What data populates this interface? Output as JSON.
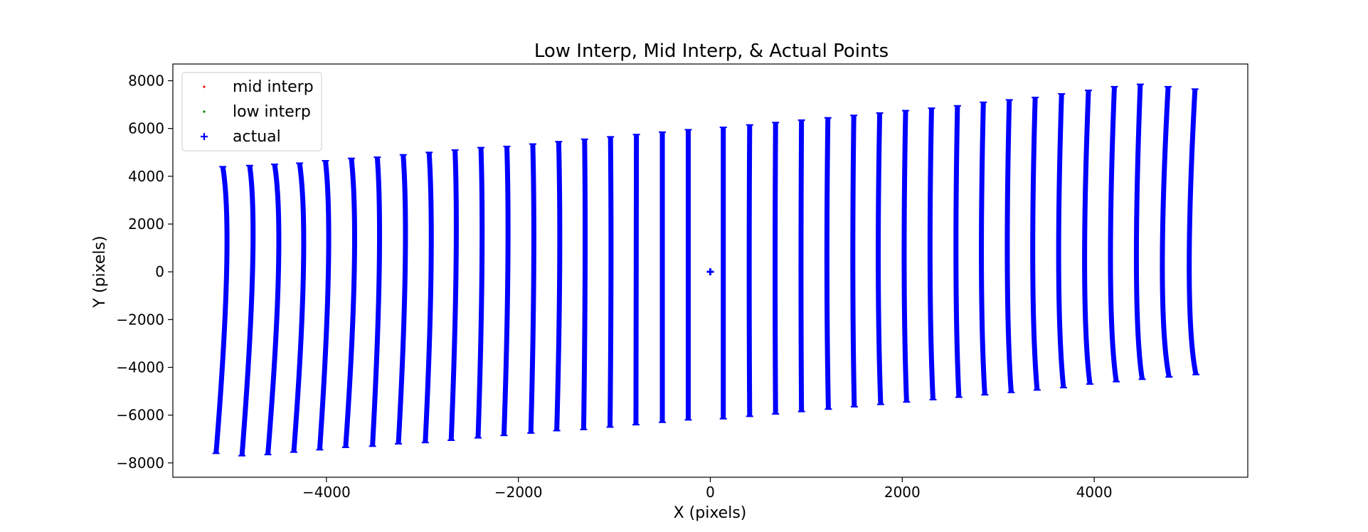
{
  "chart_data": {
    "type": "scatter",
    "title": "Low Interp, Mid Interp, & Actual Points",
    "xlabel": "X (pixels)",
    "ylabel": "Y (pixels)",
    "xlim": [
      -5600,
      5600
    ],
    "ylim": [
      -8600,
      8700
    ],
    "xticks": [
      -4000,
      -2000,
      0,
      2000,
      4000
    ],
    "xtick_labels": [
      "−4000",
      "−2000",
      "0",
      "2000",
      "4000"
    ],
    "yticks": [
      -8000,
      -6000,
      -4000,
      -2000,
      0,
      2000,
      4000,
      6000,
      8000
    ],
    "ytick_labels": [
      "−8000",
      "−6000",
      "−4000",
      "−2000",
      "0",
      "2000",
      "4000",
      "6000",
      "8000"
    ],
    "grid": false,
    "legend_position": "upper-left",
    "series": [
      {
        "name": "mid interp",
        "marker": "dot",
        "color": "#ff0000",
        "points": []
      },
      {
        "name": "low interp",
        "marker": "dot",
        "color": "#008000",
        "points": []
      },
      {
        "name": "actual",
        "marker": "plus",
        "color": "#0000ff",
        "center_point": [
          0,
          0
        ],
        "columns": [
          {
            "x_top": -5080,
            "y_top": 4400,
            "x_mid": -5040,
            "x_bottom": -5150,
            "y_bottom": -7600
          },
          {
            "x_top": -4800,
            "y_top": 4450,
            "x_mid": -4770,
            "x_bottom": -4880,
            "y_bottom": -7700
          },
          {
            "x_top": -4540,
            "y_top": 4500,
            "x_mid": -4500,
            "x_bottom": -4610,
            "y_bottom": -7650
          },
          {
            "x_top": -4280,
            "y_top": 4550,
            "x_mid": -4240,
            "x_bottom": -4340,
            "y_bottom": -7550
          },
          {
            "x_top": -4010,
            "y_top": 4650,
            "x_mid": -3980,
            "x_bottom": -4070,
            "y_bottom": -7450
          },
          {
            "x_top": -3740,
            "y_top": 4750,
            "x_mid": -3710,
            "x_bottom": -3800,
            "y_bottom": -7350
          },
          {
            "x_top": -3470,
            "y_top": 4800,
            "x_mid": -3450,
            "x_bottom": -3520,
            "y_bottom": -7300
          },
          {
            "x_top": -3200,
            "y_top": 4900,
            "x_mid": -3180,
            "x_bottom": -3250,
            "y_bottom": -7200
          },
          {
            "x_top": -2930,
            "y_top": 5000,
            "x_mid": -2910,
            "x_bottom": -2970,
            "y_bottom": -7150
          },
          {
            "x_top": -2660,
            "y_top": 5100,
            "x_mid": -2650,
            "x_bottom": -2700,
            "y_bottom": -7050
          },
          {
            "x_top": -2390,
            "y_top": 5200,
            "x_mid": -2380,
            "x_bottom": -2420,
            "y_bottom": -6950
          },
          {
            "x_top": -2120,
            "y_top": 5250,
            "x_mid": -2110,
            "x_bottom": -2150,
            "y_bottom": -6850
          },
          {
            "x_top": -1850,
            "y_top": 5350,
            "x_mid": -1840,
            "x_bottom": -1870,
            "y_bottom": -6750
          },
          {
            "x_top": -1580,
            "y_top": 5450,
            "x_mid": -1570,
            "x_bottom": -1600,
            "y_bottom": -6650
          },
          {
            "x_top": -1310,
            "y_top": 5550,
            "x_mid": -1305,
            "x_bottom": -1320,
            "y_bottom": -6600
          },
          {
            "x_top": -1040,
            "y_top": 5650,
            "x_mid": -1035,
            "x_bottom": -1045,
            "y_bottom": -6500
          },
          {
            "x_top": -770,
            "y_top": 5750,
            "x_mid": -770,
            "x_bottom": -775,
            "y_bottom": -6400
          },
          {
            "x_top": -500,
            "y_top": 5850,
            "x_mid": -500,
            "x_bottom": -500,
            "y_bottom": -6300
          },
          {
            "x_top": -230,
            "y_top": 5950,
            "x_mid": -230,
            "x_bottom": -230,
            "y_bottom": -6200
          },
          {
            "x_top": 135,
            "y_top": 6050,
            "x_mid": 135,
            "x_bottom": 135,
            "y_bottom": -6150
          },
          {
            "x_top": 410,
            "y_top": 6150,
            "x_mid": 405,
            "x_bottom": 410,
            "y_bottom": -6050
          },
          {
            "x_top": 680,
            "y_top": 6250,
            "x_mid": 675,
            "x_bottom": 680,
            "y_bottom": -5950
          },
          {
            "x_top": 950,
            "y_top": 6350,
            "x_mid": 945,
            "x_bottom": 950,
            "y_bottom": -5850
          },
          {
            "x_top": 1225,
            "y_top": 6450,
            "x_mid": 1215,
            "x_bottom": 1230,
            "y_bottom": -5750
          },
          {
            "x_top": 1495,
            "y_top": 6550,
            "x_mid": 1485,
            "x_bottom": 1500,
            "y_bottom": -5650
          },
          {
            "x_top": 1765,
            "y_top": 6650,
            "x_mid": 1750,
            "x_bottom": 1775,
            "y_bottom": -5550
          },
          {
            "x_top": 2035,
            "y_top": 6750,
            "x_mid": 2020,
            "x_bottom": 2045,
            "y_bottom": -5450
          },
          {
            "x_top": 2305,
            "y_top": 6850,
            "x_mid": 2290,
            "x_bottom": 2320,
            "y_bottom": -5350
          },
          {
            "x_top": 2575,
            "y_top": 6950,
            "x_mid": 2560,
            "x_bottom": 2590,
            "y_bottom": -5250
          },
          {
            "x_top": 2845,
            "y_top": 7100,
            "x_mid": 2825,
            "x_bottom": 2860,
            "y_bottom": -5150
          },
          {
            "x_top": 3115,
            "y_top": 7200,
            "x_mid": 3095,
            "x_bottom": 3135,
            "y_bottom": -5050
          },
          {
            "x_top": 3385,
            "y_top": 7300,
            "x_mid": 3360,
            "x_bottom": 3405,
            "y_bottom": -4950
          },
          {
            "x_top": 3660,
            "y_top": 7450,
            "x_mid": 3630,
            "x_bottom": 3680,
            "y_bottom": -4850
          },
          {
            "x_top": 3940,
            "y_top": 7600,
            "x_mid": 3900,
            "x_bottom": 3955,
            "y_bottom": -4700
          },
          {
            "x_top": 4210,
            "y_top": 7750,
            "x_mid": 4170,
            "x_bottom": 4230,
            "y_bottom": -4600
          },
          {
            "x_top": 4480,
            "y_top": 7850,
            "x_mid": 4440,
            "x_bottom": 4500,
            "y_bottom": -4500
          },
          {
            "x_top": 4770,
            "y_top": 7750,
            "x_mid": 4710,
            "x_bottom": 4780,
            "y_bottom": -4400
          },
          {
            "x_top": 5050,
            "y_top": 7650,
            "x_mid": 4990,
            "x_bottom": 5060,
            "y_bottom": -4300
          }
        ]
      }
    ]
  }
}
